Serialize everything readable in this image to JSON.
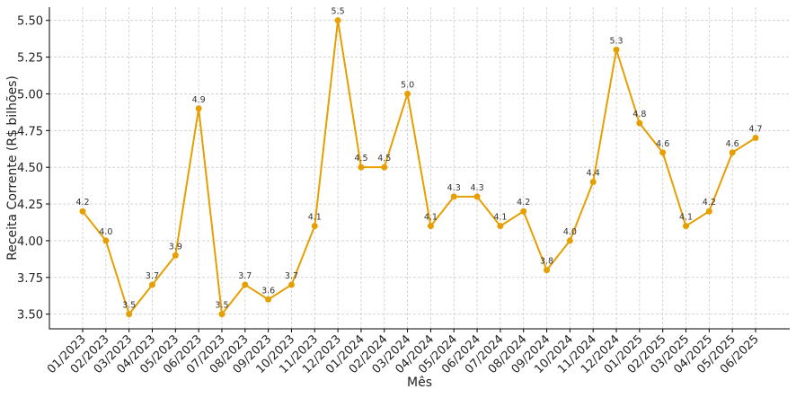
{
  "chart_data": {
    "type": "line",
    "title": "",
    "xlabel": "Mês",
    "ylabel": "Receita Corrente (R$ bilhões)",
    "categories": [
      "01/2023",
      "02/2023",
      "03/2023",
      "04/2023",
      "05/2023",
      "06/2023",
      "07/2023",
      "08/2023",
      "09/2023",
      "10/2023",
      "11/2023",
      "12/2023",
      "01/2024",
      "02/2024",
      "03/2024",
      "04/2024",
      "05/2024",
      "06/2024",
      "07/2024",
      "08/2024",
      "09/2024",
      "10/2024",
      "11/2024",
      "12/2024",
      "01/2025",
      "02/2025",
      "03/2025",
      "04/2025",
      "05/2025",
      "06/2025"
    ],
    "values": [
      4.2,
      4.0,
      3.5,
      3.7,
      3.9,
      4.9,
      3.5,
      3.7,
      3.6,
      3.7,
      4.1,
      5.5,
      4.5,
      4.5,
      5.0,
      4.1,
      4.3,
      4.3,
      4.1,
      4.2,
      3.8,
      4.0,
      4.4,
      5.3,
      4.8,
      4.6,
      4.1,
      4.2,
      4.6,
      4.7
    ],
    "yticks": [
      "3.50",
      "3.75",
      "4.00",
      "4.25",
      "4.50",
      "4.75",
      "5.00",
      "5.25",
      "5.50"
    ],
    "ylim": [
      3.4,
      5.59
    ],
    "grid": true,
    "data_labels": true,
    "color": "#E69F00"
  }
}
